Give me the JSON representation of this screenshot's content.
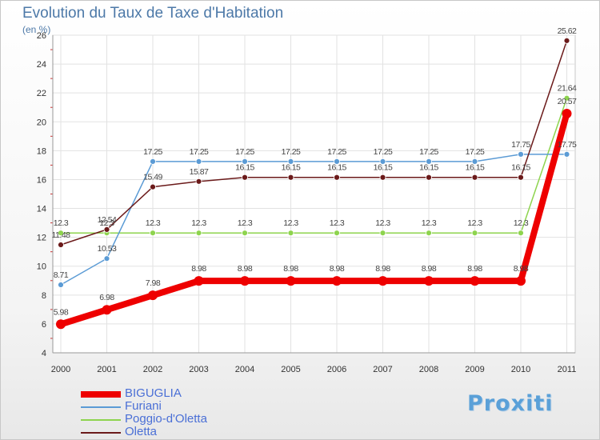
{
  "brand": "Proxiti",
  "chart_data": {
    "type": "line",
    "title": "Evolution du Taux de Taxe d'Habitation",
    "subtitle": "(en %)",
    "x": [
      "2000",
      "2001",
      "2002",
      "2003",
      "2004",
      "2005",
      "2006",
      "2007",
      "2008",
      "2009",
      "2010",
      "2011"
    ],
    "ylim": [
      4,
      26
    ],
    "yticks": [
      4,
      6,
      8,
      10,
      12,
      14,
      16,
      18,
      20,
      22,
      24,
      26
    ],
    "grid": true,
    "legend_position": "bottom-left",
    "series": [
      {
        "name": "BIGUGLIA",
        "color": "#ee0000",
        "values": [
          5.98,
          6.98,
          7.98,
          8.98,
          8.98,
          8.98,
          8.98,
          8.98,
          8.98,
          8.98,
          8.98,
          20.57
        ],
        "labels": [
          "5.98",
          "6.98",
          "7.98",
          "8.98",
          "8.98",
          "8.98",
          "8.98",
          "8.98",
          "8.98",
          "8.98",
          "8.98",
          "20.57"
        ]
      },
      {
        "name": "Furiani",
        "color": "#5b9bd5",
        "values": [
          8.71,
          10.53,
          17.25,
          17.25,
          17.25,
          17.25,
          17.25,
          17.25,
          17.25,
          17.25,
          17.75,
          17.75
        ],
        "labels": [
          "8.71",
          "10.53",
          "17.25",
          "17.25",
          "17.25",
          "17.25",
          "17.25",
          "17.25",
          "17.25",
          "17.25",
          "17.75",
          "17.75"
        ]
      },
      {
        "name": "Poggio-d'Oletta",
        "color": "#8ed44e",
        "values": [
          12.3,
          12.3,
          12.3,
          12.3,
          12.3,
          12.3,
          12.3,
          12.3,
          12.3,
          12.3,
          12.3,
          21.64
        ],
        "labels": [
          "12.3",
          "12.3",
          "12.3",
          "12.3",
          "12.3",
          "12.3",
          "12.3",
          "12.3",
          "12.3",
          "12.3",
          "12.3",
          "21.64"
        ]
      },
      {
        "name": "Oletta",
        "color": "#6b1a1a",
        "values": [
          11.48,
          12.54,
          15.49,
          15.87,
          16.15,
          16.15,
          16.15,
          16.15,
          16.15,
          16.15,
          16.15,
          25.62
        ],
        "labels": [
          "11.48",
          "12.54",
          "15.49",
          "15.87",
          "16.15",
          "16.15",
          "16.15",
          "16.15",
          "16.15",
          "16.15",
          "16.15",
          "25.62"
        ]
      }
    ]
  }
}
